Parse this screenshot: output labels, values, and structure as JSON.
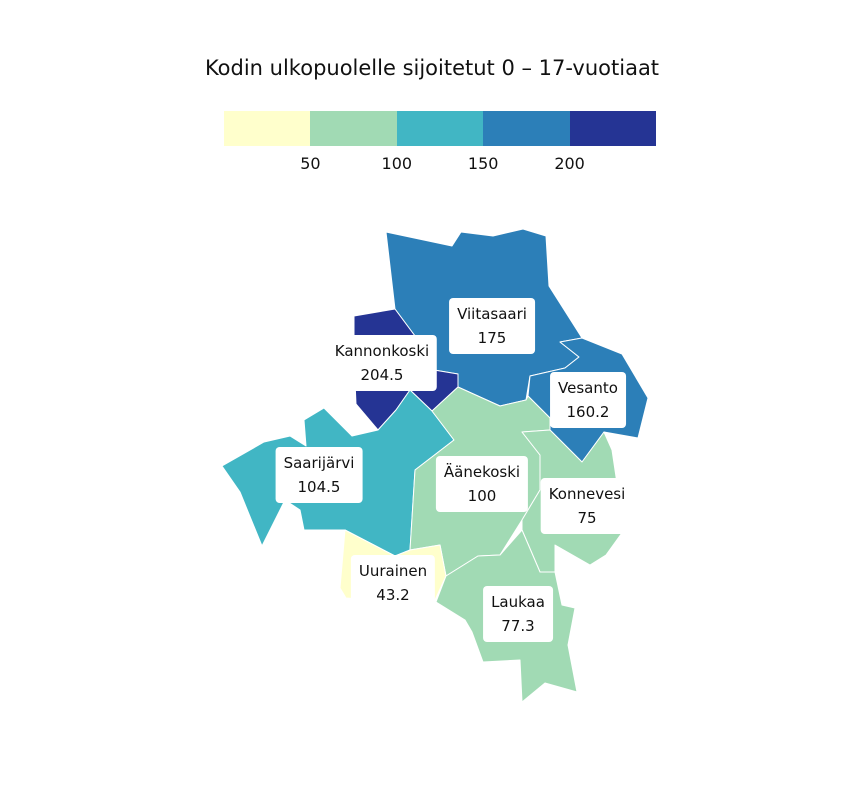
{
  "title": "Kodin ulkopuolelle sijoitetut 0 – 17-vuotiaat",
  "legend": {
    "colors": [
      "#ffffcc",
      "#a1dab4",
      "#41b6c4",
      "#2c7fb8",
      "#253494"
    ],
    "ticks": [
      "50",
      "100",
      "150",
      "200"
    ]
  },
  "regions": [
    {
      "name": "Viitasaari",
      "value": "175",
      "color": "#2c7fb8"
    },
    {
      "name": "Kannonkoski",
      "value": "204.5",
      "color": "#253494"
    },
    {
      "name": "Vesanto",
      "value": "160.2",
      "color": "#2c7fb8"
    },
    {
      "name": "Saarijärvi",
      "value": "104.5",
      "color": "#41b6c4"
    },
    {
      "name": "Äänekoski",
      "value": "100",
      "color": "#a1dab4"
    },
    {
      "name": "Konnevesi",
      "value": "75",
      "color": "#a1dab4"
    },
    {
      "name": "Uurainen",
      "value": "43.2",
      "color": "#ffffcc"
    },
    {
      "name": "Laukaa",
      "value": "77.3",
      "color": "#a1dab4"
    }
  ]
}
